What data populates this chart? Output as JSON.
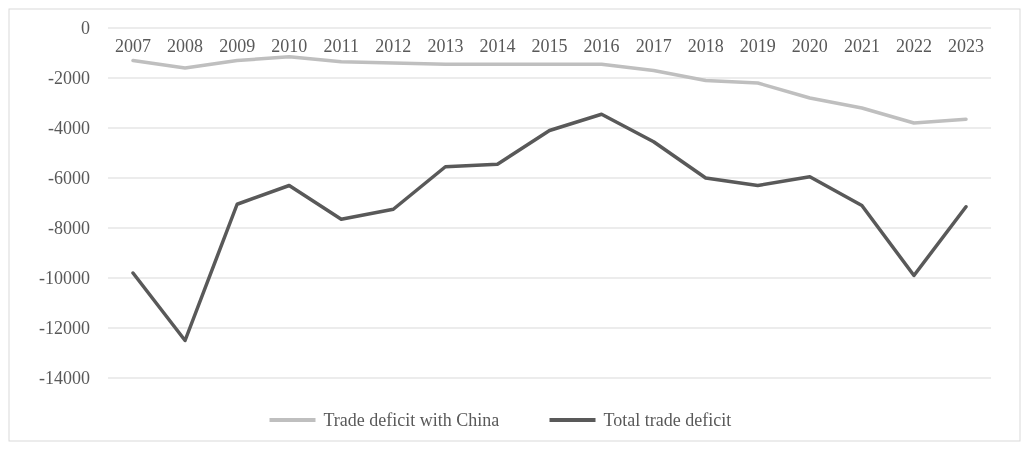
{
  "chart_data": {
    "type": "line",
    "categories": [
      "2007",
      "2008",
      "2009",
      "2010",
      "2011",
      "2012",
      "2013",
      "2014",
      "2015",
      "2016",
      "2017",
      "2018",
      "2019",
      "2020",
      "2021",
      "2022",
      "2023"
    ],
    "series": [
      {
        "name": "Trade deficit with China",
        "color": "#bfbfbf",
        "values": [
          -1300,
          -1600,
          -1300,
          -1150,
          -1350,
          -1400,
          -1450,
          -1450,
          -1450,
          -1450,
          -1700,
          -2100,
          -2200,
          -2800,
          -3200,
          -3800,
          -3650
        ]
      },
      {
        "name": "Total trade deficit",
        "color": "#595959",
        "values": [
          -9800,
          -12500,
          -7050,
          -6300,
          -7650,
          -7250,
          -5550,
          -5450,
          -4100,
          -3450,
          -4550,
          -6000,
          -6300,
          -5950,
          -7100,
          -9900,
          -7150
        ]
      }
    ],
    "ylim": [
      -14000,
      0
    ],
    "yticks": [
      0,
      -2000,
      -4000,
      -6000,
      -8000,
      -10000,
      -12000,
      -14000
    ],
    "grid": "y",
    "legend": "bottom",
    "marker": "none",
    "line_style": "solid"
  }
}
